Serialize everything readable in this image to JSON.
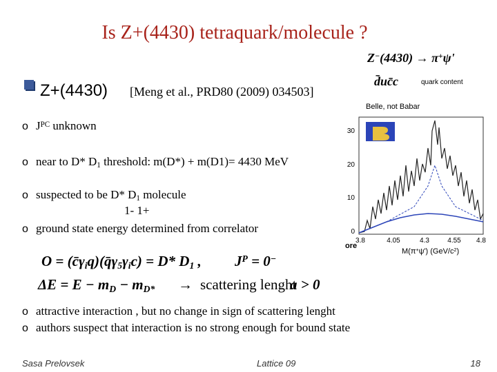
{
  "title": "Is Z+(4430) tetraquark/molecule ?",
  "heading": {
    "text": "Z+(4430)",
    "ref": "[Meng et al., PRD80 (2009) 034503]"
  },
  "bullets": [
    {
      "marker": "o",
      "parts": [
        "J",
        {
          "sup": "PC"
        },
        "  unknown"
      ]
    },
    {
      "marker": "o",
      "parts": [
        "near to D* D",
        {
          "sub": "1"
        },
        " threshold: m(D*) + m(D1)= 4430 MeV"
      ]
    },
    {
      "marker": "o",
      "parts": [
        " suspected to be D* D",
        {
          "sub": "1"
        },
        " molecule"
      ]
    },
    {
      "marker": "o",
      "parts": [
        " ground state energy determined from correlator"
      ]
    }
  ],
  "quantum_numbers": "1-  1+",
  "formula1": {
    "parts": [
      "O = (c̄γ",
      {
        "sub": "i"
      },
      "q)(q̄γ",
      {
        "sub": "5"
      },
      "γ",
      {
        "sub": "i"
      },
      "c) = D* D",
      {
        "sub": "1"
      },
      " ,"
    ],
    "jp": [
      "J",
      {
        "sup": "P"
      },
      " = 0",
      {
        "sup": "−"
      }
    ]
  },
  "formula2": {
    "parts": [
      "ΔE = E − m",
      {
        "sub": "D"
      },
      " − m",
      {
        "sub": "D*"
      }
    ],
    "arrow": "→",
    "text": "scattering lenght",
    "result": "a > 0"
  },
  "conclusions": [
    {
      "marker": "o",
      "text": "attractive interaction , but no change in sign of  scattering lenght"
    },
    {
      "marker": "o",
      "text": "authors suspect that interaction is no strong enough for bound state"
    }
  ],
  "figure": {
    "decay": [
      "Z",
      {
        "sup": "−"
      },
      "(4430) → π",
      {
        "sup": "+"
      },
      "ψ'"
    ],
    "quark_content": "d̄uc̄c",
    "quark_label": "quark content",
    "experiment": "Belle,  not Babar",
    "y_ticks": [
      "30",
      "20",
      "10",
      "0"
    ],
    "x_ticks": [
      "3.8",
      "4.05",
      "4.3",
      "4.55",
      "4.8"
    ],
    "x_label": [
      "M(π",
      {
        "sup": "+"
      },
      "ψ')  (GeV/c",
      {
        "sup": "2"
      },
      ")"
    ],
    "cut_label": "ore"
  },
  "footer": {
    "author": "Sasa Prelovsek",
    "event": "Lattice 09",
    "page": "18"
  }
}
